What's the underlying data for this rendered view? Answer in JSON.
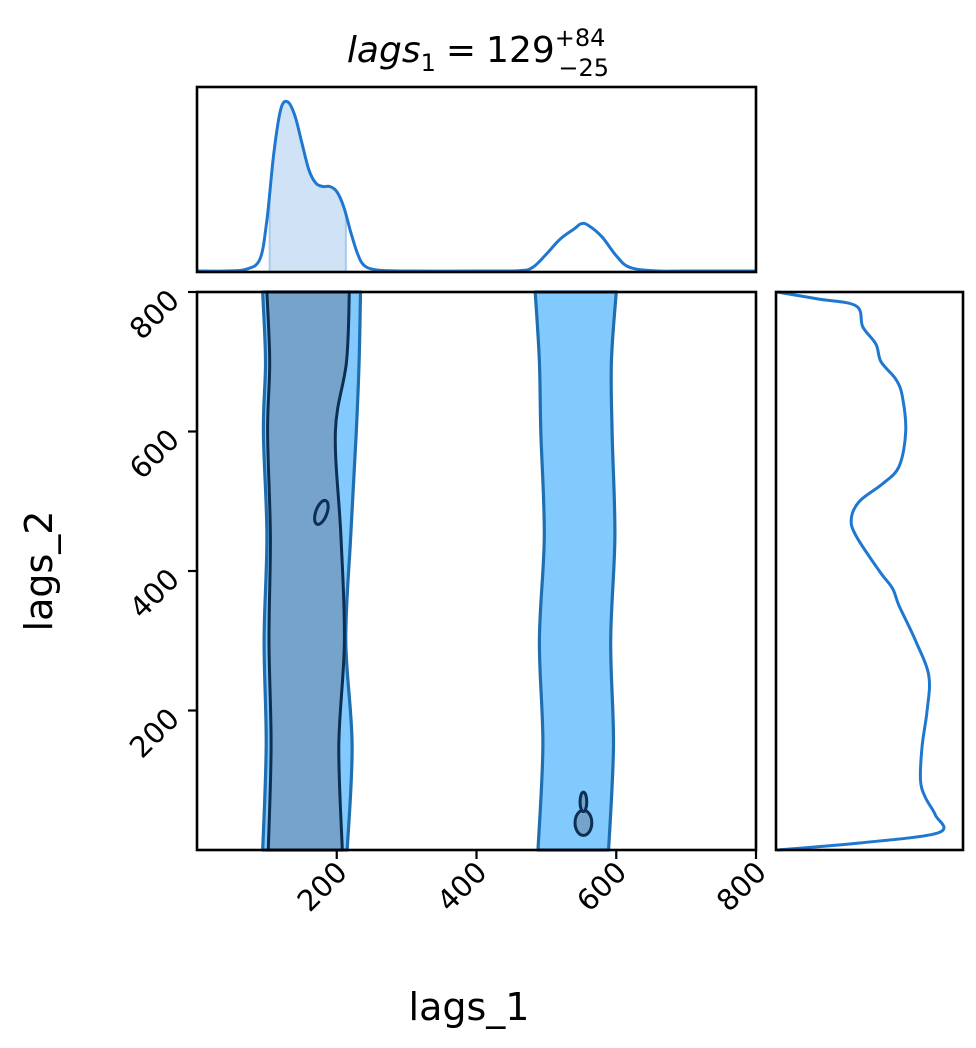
{
  "chart_data": {
    "type": "corner",
    "title": {
      "param": "lags",
      "subscript": "1",
      "equals": "=",
      "median": "129",
      "plus": "+84",
      "minus": "−25"
    },
    "xlabel": "lags_1",
    "ylabel": "lags_2",
    "xlim": [
      0,
      800
    ],
    "ylim": [
      0,
      800
    ],
    "xticks": [
      {
        "value": 200,
        "label": "200"
      },
      {
        "value": 400,
        "label": "400"
      },
      {
        "value": 600,
        "label": "600"
      },
      {
        "value": 800,
        "label": "800"
      }
    ],
    "yticks": [
      {
        "value": 200,
        "label": "200"
      },
      {
        "value": 400,
        "label": "400"
      },
      {
        "value": 600,
        "label": "600"
      },
      {
        "value": 800,
        "label": "800"
      }
    ],
    "marginal_x": {
      "x": [
        0,
        40,
        70,
        90,
        100,
        110,
        120,
        130,
        140,
        150,
        160,
        170,
        180,
        190,
        200,
        210,
        220,
        230,
        240,
        260,
        300,
        400,
        460,
        480,
        500,
        520,
        540,
        550,
        560,
        580,
        600,
        620,
        660,
        700,
        800
      ],
      "density": [
        0,
        0,
        0.01,
        0.07,
        0.3,
        0.7,
        0.96,
        1.0,
        0.92,
        0.76,
        0.6,
        0.52,
        0.5,
        0.5,
        0.47,
        0.38,
        0.23,
        0.1,
        0.03,
        0.005,
        0,
        0,
        0.002,
        0.02,
        0.1,
        0.19,
        0.25,
        0.28,
        0.27,
        0.2,
        0.09,
        0.02,
        0,
        0,
        0
      ],
      "credible_interval": [
        104,
        213
      ],
      "color": "#1f77d0",
      "fill_color": "#d0e3f6"
    },
    "marginal_y": {
      "y": [
        0,
        10,
        25,
        50,
        75,
        100,
        150,
        200,
        250,
        300,
        350,
        375,
        400,
        450,
        475,
        500,
        525,
        550,
        600,
        650,
        675,
        700,
        725,
        750,
        780,
        790,
        800
      ],
      "density": [
        0,
        0.5,
        0.98,
        0.96,
        0.9,
        0.87,
        0.88,
        0.91,
        0.92,
        0.84,
        0.74,
        0.7,
        0.62,
        0.48,
        0.45,
        0.5,
        0.64,
        0.74,
        0.78,
        0.76,
        0.72,
        0.63,
        0.6,
        0.52,
        0.48,
        0.25,
        0
      ],
      "color": "#1f77d0"
    },
    "contours": {
      "fill_colors": {
        "outer": "#82cafd",
        "inner": "#76a3cb"
      },
      "line_colors": {
        "outer": "#1f6fb0",
        "inner": "#0c2f52"
      },
      "outer_regions": [
        {
          "x_left": [
            94,
            99,
            96,
            100,
            95,
            98,
            94
          ],
          "x_right": [
            215,
            222,
            213,
            220,
            228,
            232,
            234
          ],
          "y": [
            0,
            150,
            300,
            450,
            600,
            700,
            800
          ]
        },
        {
          "x_left": [
            488,
            495,
            490,
            497,
            492,
            490,
            484
          ],
          "x_right": [
            589,
            596,
            592,
            598,
            594,
            593,
            600
          ],
          "y": [
            0,
            150,
            300,
            450,
            600,
            700,
            800
          ]
        }
      ],
      "inner_regions": [
        {
          "x_left": [
            102,
            106,
            103,
            105,
            101,
            104,
            100
          ],
          "x_right": [
            208,
            203,
            211,
            206,
            198,
            214,
            218
          ],
          "y": [
            0,
            150,
            300,
            450,
            600,
            700,
            800
          ]
        }
      ],
      "islands": [
        {
          "cx": 178,
          "cy": 484,
          "rx": 8,
          "ry": 18,
          "fill": false
        },
        {
          "cx": 553,
          "cy": 45,
          "rx": 12,
          "ry": 40,
          "fill": true
        }
      ]
    }
  }
}
